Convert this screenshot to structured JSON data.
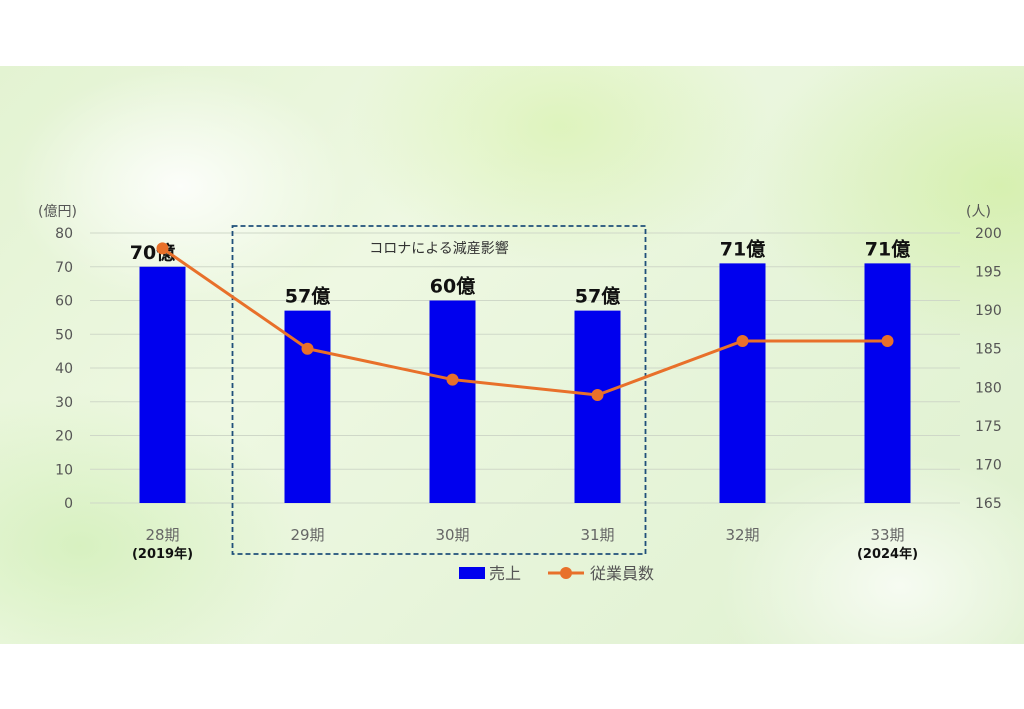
{
  "chart_data": {
    "type": "bar",
    "categories": [
      "28期",
      "29期",
      "30期",
      "31期",
      "32期",
      "33期"
    ],
    "category_sublabels": [
      "(2019年)",
      "",
      "",
      "",
      "",
      "(2024年)"
    ],
    "series": [
      {
        "name": "売上",
        "type": "bar",
        "axis": "left",
        "values": [
          70,
          57,
          60,
          57,
          71,
          71
        ],
        "data_labels": [
          "70億",
          "57億",
          "60億",
          "57億",
          "71億",
          "71億"
        ],
        "color": "#0000ee"
      },
      {
        "name": "従業員数",
        "type": "line",
        "axis": "right",
        "values": [
          198,
          185,
          181,
          179,
          186,
          186
        ],
        "color": "#e8702a"
      }
    ],
    "y_left": {
      "unit": "(億円)",
      "ticks": [
        "0",
        "10",
        "20",
        "30",
        "40",
        "50",
        "60",
        "70",
        "80"
      ],
      "range": [
        0,
        80
      ]
    },
    "y_right": {
      "unit": "(人)",
      "ticks": [
        "165",
        "170",
        "175",
        "180",
        "185",
        "190",
        "195",
        "200"
      ],
      "range": [
        165,
        200
      ]
    },
    "annotation": "コロナによる減産影響",
    "legend_position": "bottom",
    "grid": true
  },
  "colors": {
    "bar": "#0000ee",
    "line": "#e8702a",
    "grid": "#cfd8c8",
    "annotation_box": "#1f4f7a"
  }
}
